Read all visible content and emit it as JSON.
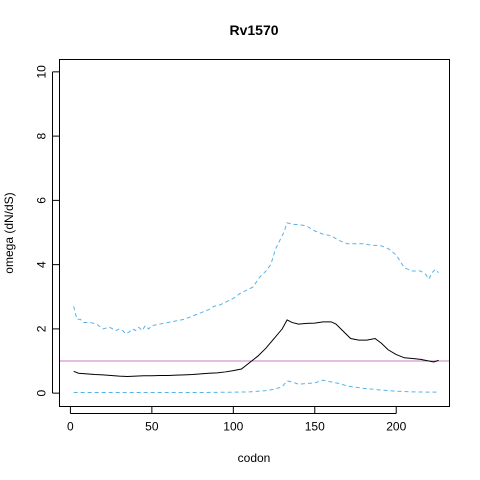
{
  "chart_data": {
    "type": "line",
    "title": "Rv1570",
    "xlabel": "codon",
    "ylabel": "omega (dN/dS)",
    "xlim": [
      -7,
      233
    ],
    "ylim": [
      -0.4,
      10.4
    ],
    "xticks": [
      0,
      50,
      100,
      150,
      200
    ],
    "xtick_labels": [
      "0",
      "50",
      "100",
      "150",
      "200"
    ],
    "yticks": [
      0,
      2,
      4,
      6,
      8,
      10
    ],
    "ytick_labels": [
      "0",
      "2",
      "4",
      "6",
      "8",
      "10"
    ],
    "grid": false,
    "legend": "none",
    "reference_line": {
      "y": 1,
      "color": "#c77cc7"
    },
    "series": [
      {
        "role": "omega",
        "color": "#000000",
        "style": "solid",
        "x": [
          2,
          5,
          10,
          15,
          20,
          25,
          30,
          35,
          40,
          45,
          50,
          55,
          60,
          65,
          70,
          75,
          80,
          85,
          90,
          95,
          100,
          105,
          110,
          115,
          120,
          125,
          130,
          133,
          136,
          140,
          145,
          150,
          155,
          160,
          163,
          167,
          172,
          177,
          182,
          187,
          191,
          195,
          200,
          205,
          210,
          215,
          220,
          223,
          226
        ],
        "y": [
          0.68,
          0.62,
          0.6,
          0.58,
          0.57,
          0.55,
          0.53,
          0.52,
          0.53,
          0.54,
          0.54,
          0.55,
          0.55,
          0.56,
          0.57,
          0.58,
          0.6,
          0.62,
          0.63,
          0.66,
          0.7,
          0.75,
          0.95,
          1.15,
          1.4,
          1.7,
          2.0,
          2.28,
          2.2,
          2.15,
          2.17,
          2.18,
          2.22,
          2.22,
          2.15,
          1.95,
          1.7,
          1.65,
          1.65,
          1.7,
          1.55,
          1.35,
          1.2,
          1.1,
          1.08,
          1.05,
          1.0,
          0.97,
          1.02
        ]
      },
      {
        "role": "upper-bound",
        "color": "#56b4e9",
        "style": "dashed",
        "x": [
          2,
          4,
          6,
          8,
          12,
          16,
          20,
          24,
          28,
          30,
          32,
          34,
          36,
          38,
          40,
          42,
          44,
          46,
          48,
          50,
          55,
          60,
          65,
          70,
          75,
          80,
          85,
          88,
          92,
          96,
          100,
          104,
          108,
          112,
          116,
          120,
          123,
          126,
          129,
          131,
          133,
          137,
          140,
          145,
          150,
          155,
          160,
          165,
          170,
          175,
          180,
          185,
          190,
          195,
          200,
          205,
          210,
          215,
          218,
          220,
          222,
          224,
          226
        ],
        "y": [
          2.7,
          2.3,
          2.3,
          2.2,
          2.2,
          2.15,
          2.0,
          2.05,
          1.95,
          2.0,
          1.95,
          1.85,
          1.9,
          2.0,
          1.95,
          2.05,
          1.95,
          2.1,
          2.0,
          2.1,
          2.15,
          2.2,
          2.25,
          2.3,
          2.4,
          2.5,
          2.6,
          2.7,
          2.75,
          2.85,
          2.95,
          3.1,
          3.2,
          3.3,
          3.6,
          3.8,
          4.0,
          4.5,
          4.8,
          5.0,
          5.3,
          5.25,
          5.25,
          5.2,
          5.05,
          4.95,
          4.9,
          4.75,
          4.65,
          4.65,
          4.65,
          4.6,
          4.6,
          4.5,
          4.3,
          3.9,
          3.8,
          3.8,
          3.7,
          3.55,
          3.75,
          3.85,
          3.75
        ]
      },
      {
        "role": "lower-bound",
        "color": "#56b4e9",
        "style": "dashed",
        "x": [
          2,
          20,
          40,
          60,
          80,
          100,
          110,
          120,
          125,
          130,
          133,
          136,
          140,
          145,
          150,
          155,
          160,
          165,
          170,
          180,
          190,
          200,
          210,
          220,
          226
        ],
        "y": [
          0.02,
          0.02,
          0.02,
          0.02,
          0.02,
          0.03,
          0.04,
          0.08,
          0.12,
          0.2,
          0.38,
          0.35,
          0.28,
          0.3,
          0.32,
          0.4,
          0.35,
          0.3,
          0.22,
          0.15,
          0.1,
          0.06,
          0.04,
          0.03,
          0.03
        ]
      }
    ]
  }
}
